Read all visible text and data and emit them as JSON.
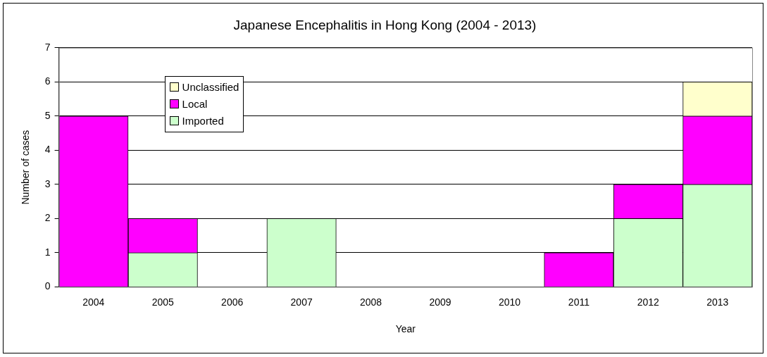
{
  "chart_data": {
    "type": "bar",
    "title": "Japanese Encephalitis in Hong Kong (2004 - 2013)",
    "xlabel": "Year",
    "ylabel": "Number of cases",
    "categories": [
      "2004",
      "2005",
      "2006",
      "2007",
      "2008",
      "2009",
      "2010",
      "2011",
      "2012",
      "2013"
    ],
    "stacked": true,
    "series": [
      {
        "name": "Imported",
        "color": "#ccffcc",
        "values": [
          0,
          1,
          0,
          2,
          0,
          0,
          0,
          0,
          2,
          3
        ]
      },
      {
        "name": "Local",
        "color": "#ff00ff",
        "values": [
          5,
          1,
          0,
          0,
          0,
          0,
          0,
          1,
          1,
          2
        ]
      },
      {
        "name": "Unclassified",
        "color": "#ffffcc",
        "values": [
          0,
          0,
          0,
          0,
          0,
          0,
          0,
          0,
          0,
          1
        ]
      }
    ],
    "ylim": [
      0,
      7
    ],
    "yticks": [
      0,
      1,
      2,
      3,
      4,
      5,
      6,
      7
    ],
    "grid": "y",
    "legend": "top left"
  }
}
